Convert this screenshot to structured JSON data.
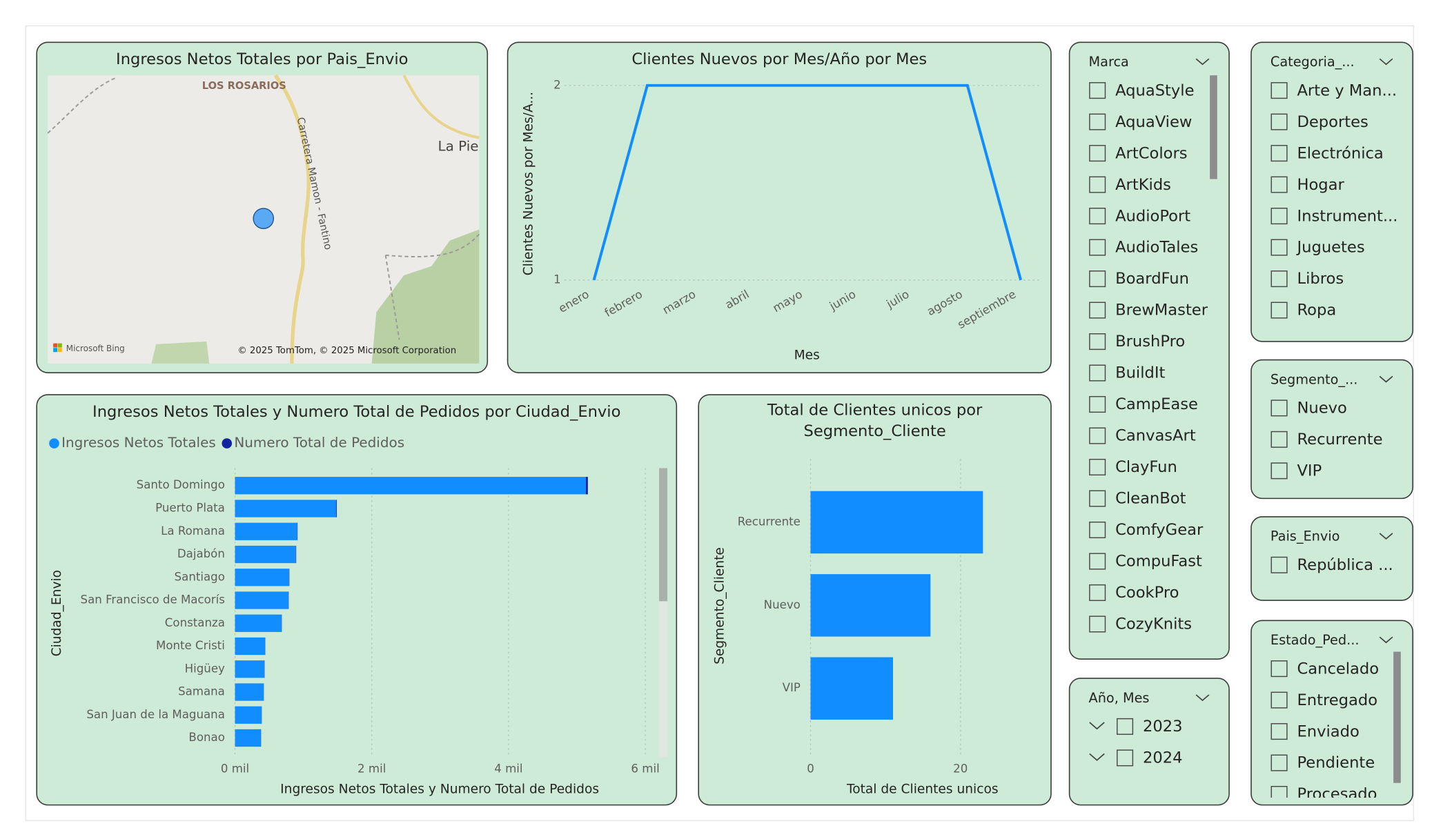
{
  "chart_data": [
    {
      "type": "map",
      "title": "Ingresos Netos Totales por Pais_Envio",
      "places": [
        "LOS ROSARIOS",
        "La Pie",
        "Carretera Mamon - Fantino"
      ],
      "logo": "Microsoft Bing",
      "attribution": "© 2025 TomTom, © 2025 Microsoft Corporation"
    },
    {
      "type": "line",
      "title": "Clientes Nuevos por Mes/Año por Mes",
      "x_label": "Mes",
      "y_label": "Clientes Nuevos por Mes/A...",
      "categories": [
        "enero",
        "febrero",
        "marzo",
        "abril",
        "mayo",
        "junio",
        "julio",
        "agosto",
        "septiembre"
      ],
      "values": [
        1,
        2,
        2,
        2,
        2,
        2,
        2,
        2,
        1
      ],
      "color": "#118dff",
      "ylim": [
        1,
        2
      ],
      "yticks": [
        1,
        2
      ],
      "grid": true
    },
    {
      "type": "hbar",
      "title": "Ingresos Netos Totales y Numero Total de Pedidos por Ciudad_Envio",
      "x_label": "Ingresos Netos Totales y Numero Total de Pedidos",
      "y_label": "Ciudad_Envio",
      "stacked": true,
      "legend": "top-left",
      "categories": [
        "Santo Domingo",
        "Puerto Plata",
        "La Romana",
        "Dajabón",
        "Santiago",
        "San Francisco de Macorís",
        "Constanza",
        "Monte Cristi",
        "Higüey",
        "Samana",
        "San Juan de la Maguana",
        "Bonao"
      ],
      "series": [
        {
          "name": "Ingresos Netos Totales",
          "color": "#118dff",
          "values": [
            5130,
            1480,
            910,
            890,
            790,
            780,
            680,
            440,
            430,
            420,
            390,
            380
          ]
        },
        {
          "name": "Numero Total de Pedidos",
          "color": "#12239e",
          "values": [
            30,
            9,
            5,
            5,
            5,
            5,
            4,
            3,
            3,
            2,
            2,
            2
          ]
        }
      ],
      "xlim": [
        0,
        6000
      ],
      "xticks": [
        {
          "value": 0,
          "label": "0 mil"
        },
        {
          "value": 2000,
          "label": "2 mil"
        },
        {
          "value": 4000,
          "label": "4 mil"
        },
        {
          "value": 6000,
          "label": "6 mil"
        }
      ],
      "grid": true
    },
    {
      "type": "hbar",
      "title": "Total de Clientes unicos por Segmento_Cliente",
      "x_label": "Total de Clientes unicos",
      "y_label": "Segmento_Cliente",
      "categories": [
        "Recurrente",
        "Nuevo",
        "VIP"
      ],
      "values": [
        23,
        16,
        11
      ],
      "color": "#118dff",
      "xlim": [
        0,
        30
      ],
      "xticks": [
        0,
        20
      ],
      "grid": true
    }
  ],
  "slicers": [
    {
      "title": "Marca",
      "items": [
        "AquaStyle",
        "AquaView",
        "ArtColors",
        "ArtKids",
        "AudioPort",
        "AudioTales",
        "BoardFun",
        "BrewMaster",
        "BrushPro",
        "BuildIt",
        "CampEase",
        "CanvasArt",
        "ClayFun",
        "CleanBot",
        "ComfyGear",
        "CompuFast",
        "CookPro",
        "CozyKnits"
      ]
    },
    {
      "title": "Categoria_...",
      "items": [
        "Arte y Man...",
        "Deportes",
        "Electrónica",
        "Hogar",
        "Instrument...",
        "Juguetes",
        "Libros",
        "Ropa"
      ]
    },
    {
      "title": "Segmento_...",
      "items": [
        "Nuevo",
        "Recurrente",
        "VIP"
      ]
    },
    {
      "title": "Pais_Envio",
      "items": [
        "República ..."
      ]
    },
    {
      "title": "Año, Mes",
      "items": [
        "2023",
        "2024"
      ]
    },
    {
      "title": "Estado_Ped...",
      "items": [
        "Cancelado",
        "Entregado",
        "Enviado",
        "Pendiente",
        "Procesado"
      ]
    }
  ]
}
